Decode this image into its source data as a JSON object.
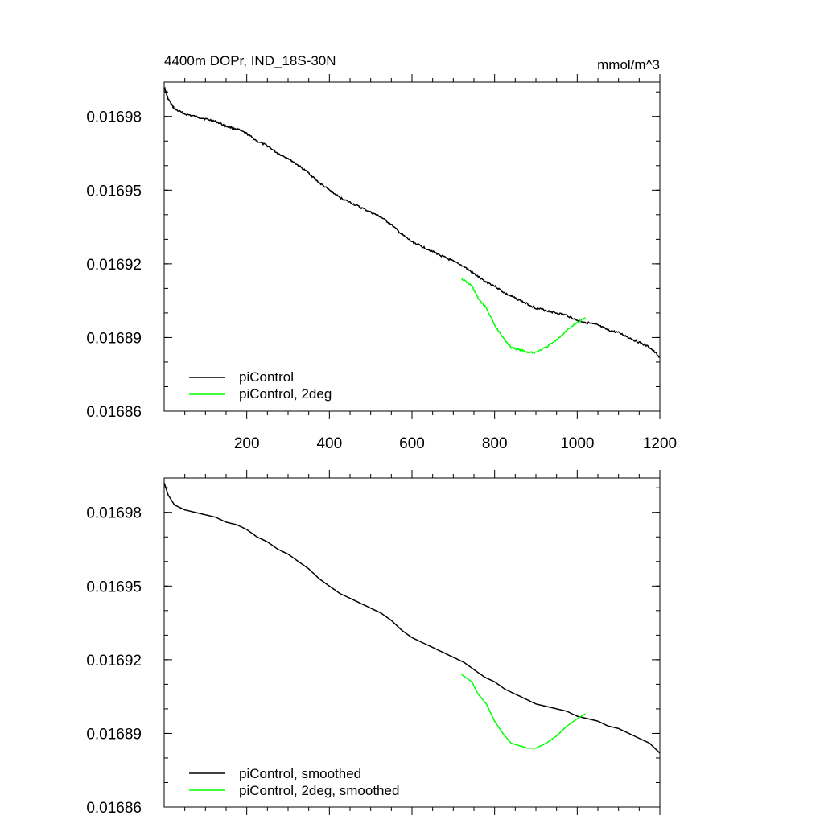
{
  "chart_data": [
    {
      "type": "line",
      "title": "4400m DOPr, IND_18S-30N",
      "units": "mmol/m^3",
      "xlim": [
        0,
        1200
      ],
      "ylim": [
        0.01686,
        0.016994
      ],
      "xticks": [
        200,
        400,
        600,
        800,
        1000,
        1200
      ],
      "xtick_labels": [
        "200",
        "400",
        "600",
        "800",
        "1000",
        "1200"
      ],
      "yticks": [
        0.01686,
        0.01689,
        0.01692,
        0.01695,
        0.01698
      ],
      "ytick_labels": [
        "0.01686",
        "0.01689",
        "0.01692",
        "0.01695",
        "0.01698"
      ],
      "legend_position": "bottom-left",
      "series": [
        {
          "name": "piControl",
          "color": "#000000",
          "x": [
            0,
            10,
            25,
            50,
            75,
            100,
            125,
            150,
            175,
            200,
            225,
            250,
            275,
            300,
            325,
            350,
            375,
            400,
            425,
            450,
            475,
            500,
            525,
            550,
            575,
            600,
            625,
            650,
            675,
            700,
            725,
            750,
            775,
            800,
            825,
            850,
            875,
            900,
            925,
            950,
            975,
            1000,
            1025,
            1050,
            1075,
            1100,
            1125,
            1150,
            1175,
            1200
          ],
          "y": [
            0.016992,
            0.016987,
            0.016983,
            0.016981,
            0.01698,
            0.016979,
            0.016978,
            0.016976,
            0.016975,
            0.016973,
            0.01697,
            0.016968,
            0.016965,
            0.016963,
            0.01696,
            0.016957,
            0.016953,
            0.01695,
            0.016947,
            0.016945,
            0.016943,
            0.016941,
            0.016939,
            0.016936,
            0.016932,
            0.016929,
            0.016927,
            0.016925,
            0.016923,
            0.016921,
            0.016919,
            0.016916,
            0.016913,
            0.016911,
            0.016908,
            0.016906,
            0.016904,
            0.016902,
            0.016901,
            0.0169,
            0.016899,
            0.016897,
            0.016896,
            0.016895,
            0.016893,
            0.016892,
            0.01689,
            0.016888,
            0.016886,
            0.016882
          ]
        },
        {
          "name": "piControl, 2deg",
          "color": "#00ff00",
          "x": [
            720,
            745,
            760,
            780,
            800,
            820,
            840,
            860,
            880,
            900,
            925,
            950,
            975,
            1000,
            1020
          ],
          "y": [
            0.016914,
            0.016911,
            0.016906,
            0.016902,
            0.016895,
            0.01689,
            0.016886,
            0.016885,
            0.016884,
            0.016884,
            0.016886,
            0.016889,
            0.016893,
            0.016896,
            0.016898
          ]
        }
      ]
    },
    {
      "type": "line",
      "title": "",
      "units": "",
      "xlim": [
        0,
        1200
      ],
      "ylim": [
        0.01686,
        0.016994
      ],
      "yticks": [
        0.01686,
        0.01689,
        0.01692,
        0.01695,
        0.01698
      ],
      "ytick_labels": [
        "0.01686",
        "0.01689",
        "0.01692",
        "0.01695",
        "0.01698"
      ],
      "legend_position": "bottom-left",
      "series": [
        {
          "name": "piControl, smoothed",
          "color": "#000000",
          "x": [
            0,
            10,
            25,
            50,
            75,
            100,
            125,
            150,
            175,
            200,
            225,
            250,
            275,
            300,
            325,
            350,
            375,
            400,
            425,
            450,
            475,
            500,
            525,
            550,
            575,
            600,
            625,
            650,
            675,
            700,
            725,
            750,
            775,
            800,
            825,
            850,
            875,
            900,
            925,
            950,
            975,
            1000,
            1025,
            1050,
            1075,
            1100,
            1125,
            1150,
            1175,
            1200
          ],
          "y": [
            0.016992,
            0.016987,
            0.016983,
            0.016981,
            0.01698,
            0.016979,
            0.016978,
            0.016976,
            0.016975,
            0.016973,
            0.01697,
            0.016968,
            0.016965,
            0.016963,
            0.01696,
            0.016957,
            0.016953,
            0.01695,
            0.016947,
            0.016945,
            0.016943,
            0.016941,
            0.016939,
            0.016936,
            0.016932,
            0.016929,
            0.016927,
            0.016925,
            0.016923,
            0.016921,
            0.016919,
            0.016916,
            0.016913,
            0.016911,
            0.016908,
            0.016906,
            0.016904,
            0.016902,
            0.016901,
            0.0169,
            0.016899,
            0.016897,
            0.016896,
            0.016895,
            0.016893,
            0.016892,
            0.01689,
            0.016888,
            0.016886,
            0.016882
          ]
        },
        {
          "name": "piControl, 2deg, smoothed",
          "color": "#00ff00",
          "x": [
            720,
            745,
            760,
            780,
            800,
            820,
            840,
            860,
            880,
            900,
            925,
            950,
            975,
            1000,
            1020
          ],
          "y": [
            0.016914,
            0.016911,
            0.016906,
            0.016902,
            0.016895,
            0.01689,
            0.016886,
            0.016885,
            0.016884,
            0.016884,
            0.016886,
            0.016889,
            0.016893,
            0.016896,
            0.016898
          ]
        }
      ]
    }
  ]
}
